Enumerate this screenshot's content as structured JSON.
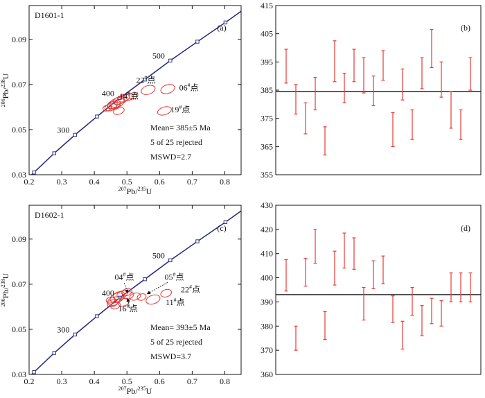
{
  "colors": {
    "concordia": "#2b2f7f",
    "ellipse": "#e53935",
    "error_bar": "#e53935",
    "mean_line": "#111111",
    "axis": "#111111"
  },
  "chart_data": [
    {
      "panel": "(a)",
      "type": "scatter",
      "sample": "D1601-1",
      "xlabel": "207Pb/235U",
      "ylabel": "206Pb/238U",
      "xlim": [
        0.2,
        0.85
      ],
      "ylim": [
        0.03,
        0.105
      ],
      "xticks": [
        "0.2",
        "0.3",
        "0.4",
        "0.5",
        "0.6",
        "0.7",
        "0.8"
      ],
      "yticks": [
        "0.03",
        "0.05",
        "0.07",
        "0.09"
      ],
      "concordia_ages": [
        {
          "label": "",
          "x": 0.215,
          "y": 0.031
        },
        {
          "label": "",
          "x": 0.277,
          "y": 0.0395
        },
        {
          "label": "300",
          "x": 0.341,
          "y": 0.0477
        },
        {
          "label": "",
          "x": 0.408,
          "y": 0.0558
        },
        {
          "label": "400",
          "x": 0.478,
          "y": 0.064
        },
        {
          "label": "",
          "x": 0.555,
          "y": 0.0722
        },
        {
          "label": "500",
          "x": 0.633,
          "y": 0.0806
        },
        {
          "label": "",
          "x": 0.716,
          "y": 0.089
        },
        {
          "label": "",
          "x": 0.802,
          "y": 0.0975
        }
      ],
      "ellipses": [
        {
          "x": 0.45,
          "y": 0.06,
          "rx": 0.018,
          "ry": 0.0016
        },
        {
          "x": 0.46,
          "y": 0.0612,
          "rx": 0.02,
          "ry": 0.0018
        },
        {
          "x": 0.47,
          "y": 0.062,
          "rx": 0.022,
          "ry": 0.002
        },
        {
          "x": 0.455,
          "y": 0.0608,
          "rx": 0.016,
          "ry": 0.0015
        },
        {
          "x": 0.475,
          "y": 0.0628,
          "rx": 0.018,
          "ry": 0.0016
        },
        {
          "x": 0.465,
          "y": 0.0605,
          "rx": 0.015,
          "ry": 0.0014
        },
        {
          "x": 0.485,
          "y": 0.0633,
          "rx": 0.016,
          "ry": 0.0015
        },
        {
          "x": 0.44,
          "y": 0.0596,
          "rx": 0.014,
          "ry": 0.0013
        },
        {
          "x": 0.49,
          "y": 0.064,
          "rx": 0.018,
          "ry": 0.0016
        },
        {
          "x": 0.505,
          "y": 0.0645,
          "rx": 0.016,
          "ry": 0.0015
        },
        {
          "x": 0.475,
          "y": 0.0583,
          "rx": 0.017,
          "ry": 0.0015
        },
        {
          "x": 0.52,
          "y": 0.065,
          "rx": 0.014,
          "ry": 0.0014
        },
        {
          "x": 0.565,
          "y": 0.0676,
          "rx": 0.022,
          "ry": 0.0019
        },
        {
          "x": 0.625,
          "y": 0.068,
          "rx": 0.022,
          "ry": 0.0019
        },
        {
          "x": 0.615,
          "y": 0.0583,
          "rx": 0.022,
          "ry": 0.0017
        }
      ],
      "spot_labels": [
        {
          "text": "22",
          "sup": "#",
          "suffix": "点",
          "x": 0.558,
          "y": 0.0708
        },
        {
          "text": "06",
          "sup": "#",
          "suffix": "点",
          "x": 0.69,
          "y": 0.0674
        },
        {
          "text": "14",
          "sup": "#",
          "suffix": "点",
          "x": 0.506,
          "y": 0.0636
        },
        {
          "text": "19",
          "sup": "#",
          "suffix": "点",
          "x": 0.664,
          "y": 0.0577
        }
      ],
      "stats": [
        "Mean= 385±5 Ma",
        "5 of 25 rejected",
        "MSWD=2.7"
      ]
    },
    {
      "panel": "(b)",
      "type": "error_bar",
      "ylim": [
        355,
        415
      ],
      "yticks": [
        "355",
        "365",
        "375",
        "385",
        "395",
        "405",
        "415"
      ],
      "mean": 384.5,
      "bars": [
        {
          "low": 387.5,
          "high": 399.5
        },
        {
          "low": 376.5,
          "high": 387.0
        },
        {
          "low": 369.5,
          "high": 380.5
        },
        {
          "low": 378.0,
          "high": 389.5
        },
        {
          "low": 362.0,
          "high": 372.0
        },
        {
          "low": 388.0,
          "high": 402.5
        },
        {
          "low": 380.5,
          "high": 391.0
        },
        {
          "low": 388.0,
          "high": 399.5
        },
        {
          "low": 384.0,
          "high": 396.5
        },
        {
          "low": 379.5,
          "high": 390.0
        },
        {
          "low": 388.5,
          "high": 399.0
        },
        {
          "low": 365.0,
          "high": 377.0
        },
        {
          "low": 381.5,
          "high": 392.5
        },
        {
          "low": 367.5,
          "high": 378.0
        },
        {
          "low": 385.5,
          "high": 396.5
        },
        {
          "low": 393.0,
          "high": 406.5
        },
        {
          "low": 382.5,
          "high": 395.0
        },
        {
          "low": 371.5,
          "high": 384.5
        },
        {
          "low": 367.5,
          "high": 378.0
        },
        {
          "low": 385.0,
          "high": 396.5
        }
      ]
    },
    {
      "panel": "(c)",
      "type": "scatter",
      "sample": "D1602-1",
      "xlabel": "207Pb/235U",
      "ylabel": "206Pb/238U",
      "xlim": [
        0.2,
        0.85
      ],
      "ylim": [
        0.03,
        0.105
      ],
      "xticks": [
        "0.2",
        "0.3",
        "0.4",
        "0.5",
        "0.6",
        "0.7",
        "0.8"
      ],
      "yticks": [
        "0.03",
        "0.05",
        "0.07",
        "0.09"
      ],
      "concordia_ages": [
        {
          "label": "",
          "x": 0.215,
          "y": 0.031
        },
        {
          "label": "",
          "x": 0.277,
          "y": 0.0395
        },
        {
          "label": "300",
          "x": 0.341,
          "y": 0.0477
        },
        {
          "label": "",
          "x": 0.408,
          "y": 0.0558
        },
        {
          "label": "400",
          "x": 0.478,
          "y": 0.064
        },
        {
          "label": "",
          "x": 0.555,
          "y": 0.0722
        },
        {
          "label": "500",
          "x": 0.633,
          "y": 0.0806
        },
        {
          "label": "",
          "x": 0.716,
          "y": 0.089
        },
        {
          "label": "",
          "x": 0.802,
          "y": 0.0975
        }
      ],
      "ellipses": [
        {
          "x": 0.46,
          "y": 0.0625,
          "rx": 0.02,
          "ry": 0.0018
        },
        {
          "x": 0.47,
          "y": 0.064,
          "rx": 0.022,
          "ry": 0.002
        },
        {
          "x": 0.455,
          "y": 0.0615,
          "rx": 0.016,
          "ry": 0.0015
        },
        {
          "x": 0.475,
          "y": 0.065,
          "rx": 0.018,
          "ry": 0.0016
        },
        {
          "x": 0.465,
          "y": 0.0605,
          "rx": 0.015,
          "ry": 0.0014
        },
        {
          "x": 0.485,
          "y": 0.0655,
          "rx": 0.016,
          "ry": 0.0015
        },
        {
          "x": 0.45,
          "y": 0.063,
          "rx": 0.014,
          "ry": 0.0013
        },
        {
          "x": 0.49,
          "y": 0.062,
          "rx": 0.018,
          "ry": 0.0016
        },
        {
          "x": 0.505,
          "y": 0.065,
          "rx": 0.016,
          "ry": 0.0015
        },
        {
          "x": 0.5,
          "y": 0.0665,
          "rx": 0.016,
          "ry": 0.0015
        },
        {
          "x": 0.525,
          "y": 0.0645,
          "rx": 0.017,
          "ry": 0.0015
        },
        {
          "x": 0.545,
          "y": 0.0643,
          "rx": 0.014,
          "ry": 0.0014
        },
        {
          "x": 0.58,
          "y": 0.0632,
          "rx": 0.022,
          "ry": 0.0019
        },
        {
          "x": 0.62,
          "y": 0.066,
          "rx": 0.017,
          "ry": 0.0016
        }
      ],
      "spot_labels": [
        {
          "text": "04",
          "sup": "#",
          "suffix": "点",
          "x": 0.492,
          "y": 0.072
        },
        {
          "text": "05",
          "sup": "#",
          "suffix": "点",
          "x": 0.645,
          "y": 0.072
        },
        {
          "text": "22",
          "sup": "#",
          "suffix": "点",
          "x": 0.695,
          "y": 0.0665
        },
        {
          "text": "11",
          "sup": "#",
          "suffix": "点",
          "x": 0.648,
          "y": 0.0607
        },
        {
          "text": "16",
          "sup": "#",
          "suffix": "点",
          "x": 0.503,
          "y": 0.058
        }
      ],
      "arrows": [
        {
          "from": [
            0.492,
            0.0705
          ],
          "to": [
            0.502,
            0.0662
          ]
        },
        {
          "from": [
            0.625,
            0.0708
          ],
          "to": [
            0.562,
            0.0657
          ]
        },
        {
          "from": [
            0.508,
            0.0594
          ],
          "to": [
            0.502,
            0.0636
          ]
        }
      ],
      "stats": [
        "Mean= 393±5 Ma",
        "5 of 25 rejected",
        "MSWD=3.7"
      ]
    },
    {
      "panel": "(d)",
      "type": "error_bar",
      "ylim": [
        360,
        430
      ],
      "yticks": [
        "360",
        "370",
        "380",
        "390",
        "400",
        "410",
        "420",
        "430"
      ],
      "mean": 393.0,
      "bars": [
        {
          "low": 394.5,
          "high": 407.5
        },
        {
          "low": 370.0,
          "high": 380.0
        },
        {
          "low": 396.5,
          "high": 408.0
        },
        {
          "low": 406.0,
          "high": 420.0
        },
        {
          "low": 374.5,
          "high": 386.0
        },
        {
          "low": 397.0,
          "high": 411.0
        },
        {
          "low": 404.0,
          "high": 418.5
        },
        {
          "low": 403.5,
          "high": 416.5
        },
        {
          "low": 382.5,
          "high": 396.0
        },
        {
          "low": 395.5,
          "high": 407.0
        },
        {
          "low": 397.5,
          "high": 409.0
        },
        {
          "low": 381.5,
          "high": 392.5
        },
        {
          "low": 370.5,
          "high": 382.0
        },
        {
          "low": 384.5,
          "high": 396.0
        },
        {
          "low": 376.0,
          "high": 388.5
        },
        {
          "low": 381.0,
          "high": 391.5
        },
        {
          "low": 380.0,
          "high": 390.5
        },
        {
          "low": 390.0,
          "high": 402.0
        },
        {
          "low": 390.0,
          "high": 402.0
        },
        {
          "low": 390.0,
          "high": 402.0
        }
      ]
    }
  ]
}
